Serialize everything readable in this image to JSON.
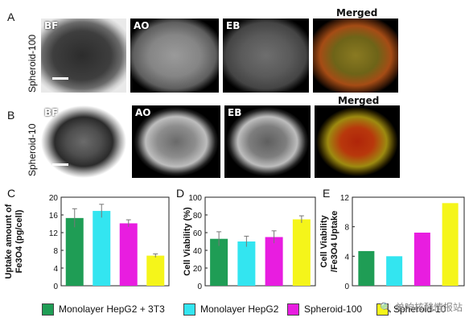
{
  "panel_letters": {
    "a": "A",
    "b": "B",
    "c": "C",
    "d": "D",
    "e": "E"
  },
  "row_labels": {
    "spheroid_100": "Spheroid-100",
    "spheroid_10": "Spheroid-10"
  },
  "micro_labels": {
    "bf": "BF",
    "ao": "AO",
    "eb": "EB",
    "merged": "Merged"
  },
  "legend": [
    {
      "label": "Monolayer HepG2 + 3T3",
      "color": "#1f9d55"
    },
    {
      "label": "Monolayer HepG2",
      "color": "#33e5f0"
    },
    {
      "label": "Spheroid-100",
      "color": "#e81de0"
    },
    {
      "label": "Spheroid-10",
      "color": "#f5f51a"
    }
  ],
  "watermark": "🔍 单响核酸情报站",
  "chart_data": [
    {
      "type": "bar",
      "panel": "C",
      "ylabel_line1": "Uptake amount of",
      "ylabel_line2": "Fe3O4 (pg/cell)",
      "ylim": [
        0,
        20
      ],
      "yticks": [
        0,
        4,
        8,
        12,
        16,
        20
      ],
      "categories": [
        "Monolayer HepG2 + 3T3",
        "Monolayer HepG2",
        "Spheroid-100",
        "Spheroid-10"
      ],
      "values": [
        15.3,
        16.9,
        14.1,
        6.8
      ],
      "errors": [
        2.1,
        1.5,
        0.8,
        0.4
      ],
      "colors": [
        "#1f9d55",
        "#33e5f0",
        "#e81de0",
        "#f5f51a"
      ]
    },
    {
      "type": "bar",
      "panel": "D",
      "ylabel_line1": "Cell Viability (%)",
      "ylabel_line2": "",
      "ylim": [
        0,
        100
      ],
      "yticks": [
        0,
        20,
        40,
        60,
        80,
        100
      ],
      "categories": [
        "Monolayer HepG2 + 3T3",
        "Monolayer HepG2",
        "Spheroid-100",
        "Spheroid-10"
      ],
      "values": [
        53,
        50,
        55,
        75
      ],
      "errors": [
        8,
        6,
        7,
        4
      ],
      "colors": [
        "#1f9d55",
        "#33e5f0",
        "#e81de0",
        "#f5f51a"
      ]
    },
    {
      "type": "bar",
      "panel": "E",
      "ylabel_line1": "Cell Viability",
      "ylabel_line2": "/Fe3O4 Uptake",
      "ylim": [
        0,
        12
      ],
      "yticks": [
        0,
        4,
        8,
        12
      ],
      "categories": [
        "Monolayer HepG2 + 3T3",
        "Monolayer HepG2",
        "Spheroid-100",
        "Spheroid-10"
      ],
      "values": [
        4.7,
        4.0,
        7.2,
        11.2
      ],
      "errors": [
        0,
        0,
        0,
        0
      ],
      "colors": [
        "#1f9d55",
        "#33e5f0",
        "#e81de0",
        "#f5f51a"
      ]
    }
  ]
}
